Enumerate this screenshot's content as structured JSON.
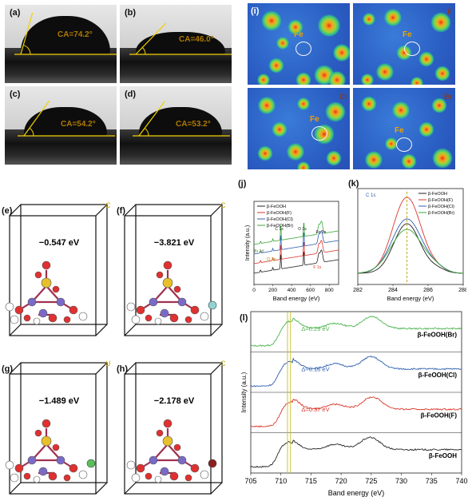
{
  "contact_angle": {
    "panels": [
      {
        "label": "(a)",
        "ca": "CA=74.2°",
        "angle": 74.2
      },
      {
        "label": "(b)",
        "ca": "CA=46.0°",
        "angle": 46.0
      },
      {
        "label": "(c)",
        "ca": "CA=54.2°",
        "angle": 54.2
      },
      {
        "label": "(d)",
        "ca": "CA=53.2°",
        "angle": 53.2
      }
    ]
  },
  "esp_maps": {
    "label": "(i)",
    "atom_label": "Fe",
    "corner_tags": [
      "F",
      "Cl",
      "Br"
    ]
  },
  "dft": {
    "panels": [
      {
        "label": "(e)",
        "energy": "−0.547 eV"
      },
      {
        "label": "(f)",
        "energy": "−3.821 eV"
      },
      {
        "label": "(g)",
        "energy": "−1.489 eV"
      },
      {
        "label": "(h)",
        "energy": "−2.178 eV"
      }
    ],
    "axis_tags": [
      "C",
      "C",
      "U",
      "C"
    ]
  },
  "chart_data": [
    {
      "panel": "(j)",
      "type": "line",
      "xlabel": "Band energy (eV)",
      "ylabel": "Intensity (a.u.)",
      "xlim": [
        0,
        900
      ],
      "xticks": [
        "0",
        "200",
        "400",
        "600",
        "800"
      ],
      "legend": [
        "β-FeOOH",
        "β-FeOOH(F)",
        "β-FeOOH(Cl)",
        "β-FeOOH(Br)"
      ],
      "legend_position": "top-left",
      "annotations": [
        "C 1s",
        "O 1s",
        "Fe 2p",
        "Cl 2p",
        "Br 3d",
        "F 1s"
      ],
      "series": [
        {
          "name": "β-FeOOH",
          "color": "#222222",
          "offset": 0
        },
        {
          "name": "β-FeOOH(F)",
          "color": "#d9362c",
          "offset": 1
        },
        {
          "name": "β-FeOOH(Cl)",
          "color": "#2f5fb0",
          "offset": 2
        },
        {
          "name": "β-FeOOH(Br)",
          "color": "#3aa83a",
          "offset": 3
        }
      ],
      "peaks": [
        {
          "x": 70,
          "h": 0.15
        },
        {
          "x": 200,
          "h": 0.18
        },
        {
          "x": 285,
          "h": 1.0
        },
        {
          "x": 530,
          "h": 1.0
        },
        {
          "x": 690,
          "h": 0.6
        },
        {
          "x": 712,
          "h": 0.55
        },
        {
          "x": 725,
          "h": 0.45
        }
      ]
    },
    {
      "panel": "(k)",
      "type": "line",
      "xlabel": "Band energy (eV)",
      "xlim": [
        282,
        288
      ],
      "xticks": [
        "282",
        "284",
        "286",
        "288"
      ],
      "annotation": "C 1s",
      "peak_center": 284.8,
      "legend": [
        "β-FeOOH",
        "β-FeOOH(F)",
        "β-FeOOH(Cl)",
        "β-FeOOH(Br)"
      ],
      "legend_position": "top-right",
      "series": [
        {
          "name": "β-FeOOH",
          "color": "#222222",
          "height": 0.62,
          "width": 0.75
        },
        {
          "name": "β-FeOOH(F)",
          "color": "#d9362c",
          "height": 0.95,
          "width": 0.8
        },
        {
          "name": "β-FeOOH(Cl)",
          "color": "#2f5fb0",
          "height": 0.68,
          "width": 0.85
        },
        {
          "name": "β-FeOOH(Br)",
          "color": "#3aa83a",
          "height": 0.55,
          "width": 0.9
        }
      ]
    },
    {
      "panel": "(l)",
      "type": "line",
      "xlabel": "Band energy (eV)",
      "ylabel": "Intensity (a.u.)",
      "xlim": [
        705,
        740
      ],
      "xticks": [
        "705",
        "710",
        "715",
        "720",
        "725",
        "730",
        "735",
        "740"
      ],
      "vlines": [
        711.1,
        711.6
      ],
      "series": [
        {
          "name": "β-FeOOH(Br)",
          "color": "#4bb34b",
          "delta": "Δ=0.29 eV",
          "shift": 0.29
        },
        {
          "name": "β-FeOOH(Cl)",
          "color": "#2f5fb0",
          "delta": "Δ=0.18 eV",
          "shift": 0.18
        },
        {
          "name": "β-FeOOH(F)",
          "color": "#d9362c",
          "delta": "Δ=0.37 eV",
          "shift": 0.37
        },
        {
          "name": "β-FeOOH",
          "color": "#222222",
          "delta": "",
          "shift": 0
        }
      ]
    }
  ]
}
